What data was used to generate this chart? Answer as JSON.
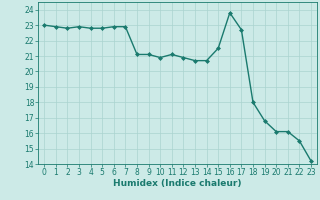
{
  "x": [
    0,
    1,
    2,
    3,
    4,
    5,
    6,
    7,
    8,
    9,
    10,
    11,
    12,
    13,
    14,
    15,
    16,
    17,
    18,
    19,
    20,
    21,
    22,
    23
  ],
  "y": [
    23.0,
    22.9,
    22.8,
    22.9,
    22.8,
    22.8,
    22.9,
    22.9,
    21.1,
    21.1,
    20.9,
    21.1,
    20.9,
    20.7,
    20.7,
    21.5,
    23.8,
    22.7,
    18.0,
    16.8,
    16.1,
    16.1,
    15.5,
    14.2
  ],
  "xlim": [
    -0.5,
    23.5
  ],
  "ylim": [
    14,
    24.5
  ],
  "yticks": [
    14,
    15,
    16,
    17,
    18,
    19,
    20,
    21,
    22,
    23,
    24
  ],
  "xticks": [
    0,
    1,
    2,
    3,
    4,
    5,
    6,
    7,
    8,
    9,
    10,
    11,
    12,
    13,
    14,
    15,
    16,
    17,
    18,
    19,
    20,
    21,
    22,
    23
  ],
  "xlabel": "Humidex (Indice chaleur)",
  "line_color": "#1a7a6e",
  "marker": "D",
  "marker_size": 2.0,
  "bg_color": "#cceae7",
  "grid_color": "#aad4d0",
  "tick_fontsize": 5.5,
  "xlabel_fontsize": 6.5,
  "line_width": 1.0
}
